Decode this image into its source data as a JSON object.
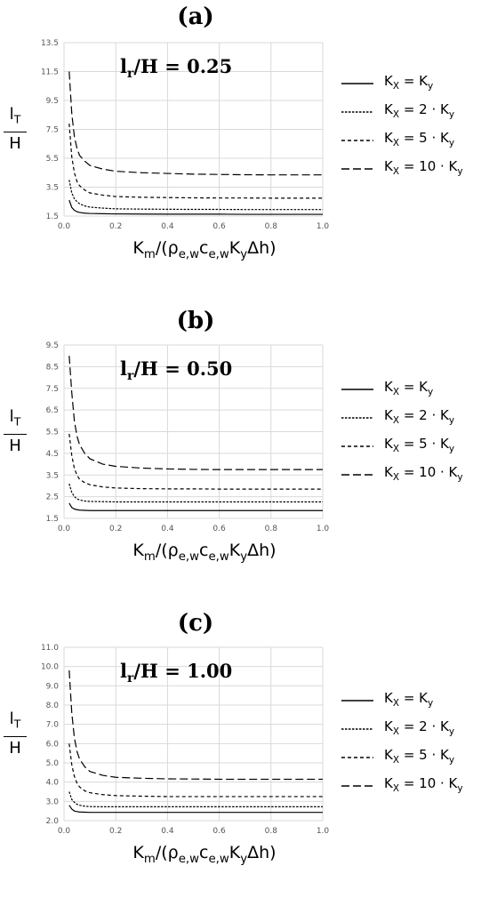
{
  "ylabel_num": "l",
  "ylabel_num_sub": "T",
  "ylabel_den": "H",
  "xlabel_main": "K",
  "xlabel_sub_m": "m",
  "xlabel_rest1": "/(ρ",
  "xlabel_sub_ew1": "e,w",
  "xlabel_c": "c",
  "xlabel_sub_ew2": "e,w",
  "xlabel_K": "K",
  "xlabel_sub_y": "y",
  "xlabel_tail": "Δh)",
  "legend": [
    {
      "label": "K",
      "sub": "X",
      "eq": " = K",
      "sub2": "y",
      "style": "solid"
    },
    {
      "label": "K",
      "sub": "X",
      "eq": " = 2 · K",
      "sub2": "y",
      "style": "dot"
    },
    {
      "label": "K",
      "sub": "X",
      "eq": " = 5 · K",
      "sub2": "y",
      "style": "dash"
    },
    {
      "label": "K",
      "sub": "X",
      "eq": " = 10 · K",
      "sub2": "y",
      "style": "longdash"
    }
  ],
  "colors": {
    "lines": "#000000",
    "grid": "#d9d9d9"
  },
  "chart_data": [
    {
      "type": "line",
      "panel_label": "(a)",
      "ratio_main": "l",
      "ratio_sub": "r",
      "ratio_rest": "/H = 0.25",
      "xlim": [
        0,
        1.0
      ],
      "ylim": [
        1.5,
        13.5
      ],
      "xticks": [
        "0.0",
        "0.2",
        "0.4",
        "0.6",
        "0.8",
        "1.0"
      ],
      "yticks": [
        "1.5",
        "3.5",
        "5.5",
        "7.5",
        "9.5",
        "11.5",
        "13.5"
      ],
      "grid": true,
      "legend_position": "right",
      "x": [
        0.02,
        0.03,
        0.04,
        0.05,
        0.06,
        0.08,
        0.1,
        0.15,
        0.2,
        0.3,
        0.4,
        0.5,
        0.6,
        0.7,
        0.8,
        0.9,
        1.0
      ],
      "series": [
        {
          "values": [
            2.6,
            2.1,
            1.9,
            1.8,
            1.75,
            1.7,
            1.68,
            1.66,
            1.65,
            1.64,
            1.63,
            1.63,
            1.63,
            1.62,
            1.62,
            1.62,
            1.62
          ]
        },
        {
          "values": [
            4.0,
            3.1,
            2.7,
            2.5,
            2.35,
            2.2,
            2.12,
            2.05,
            2.0,
            1.98,
            1.97,
            1.96,
            1.96,
            1.95,
            1.95,
            1.95,
            1.95
          ]
        },
        {
          "values": [
            7.9,
            5.6,
            4.5,
            3.9,
            3.6,
            3.3,
            3.1,
            2.95,
            2.85,
            2.8,
            2.78,
            2.76,
            2.75,
            2.75,
            2.74,
            2.74,
            2.74
          ]
        },
        {
          "values": [
            11.5,
            8.6,
            7.0,
            6.2,
            5.7,
            5.3,
            5.0,
            4.75,
            4.6,
            4.5,
            4.45,
            4.4,
            4.38,
            4.36,
            4.35,
            4.35,
            4.35
          ]
        }
      ]
    },
    {
      "type": "line",
      "panel_label": "(b)",
      "ratio_main": "l",
      "ratio_sub": "r",
      "ratio_rest": "/H = 0.50",
      "xlim": [
        0,
        1.0
      ],
      "ylim": [
        1.5,
        9.5
      ],
      "xticks": [
        "0.0",
        "0.2",
        "0.4",
        "0.6",
        "0.8",
        "1.0"
      ],
      "yticks": [
        "1.5",
        "2.5",
        "3.5",
        "4.5",
        "5.5",
        "6.5",
        "7.5",
        "8.5",
        "9.5"
      ],
      "grid": true,
      "legend_position": "right",
      "x": [
        0.02,
        0.03,
        0.04,
        0.05,
        0.06,
        0.08,
        0.1,
        0.15,
        0.2,
        0.3,
        0.4,
        0.5,
        0.6,
        0.7,
        0.8,
        0.9,
        1.0
      ],
      "series": [
        {
          "values": [
            2.2,
            2.0,
            1.93,
            1.9,
            1.88,
            1.87,
            1.86,
            1.86,
            1.86,
            1.86,
            1.86,
            1.86,
            1.86,
            1.86,
            1.86,
            1.86,
            1.86
          ]
        },
        {
          "values": [
            3.1,
            2.7,
            2.5,
            2.4,
            2.35,
            2.3,
            2.28,
            2.27,
            2.26,
            2.26,
            2.26,
            2.26,
            2.26,
            2.26,
            2.26,
            2.26,
            2.26
          ]
        },
        {
          "values": [
            5.4,
            4.4,
            3.8,
            3.5,
            3.3,
            3.15,
            3.05,
            2.95,
            2.9,
            2.87,
            2.86,
            2.86,
            2.85,
            2.85,
            2.85,
            2.85,
            2.85
          ]
        },
        {
          "values": [
            9.0,
            7.3,
            6.0,
            5.3,
            4.9,
            4.5,
            4.25,
            4.0,
            3.9,
            3.82,
            3.78,
            3.76,
            3.75,
            3.75,
            3.75,
            3.75,
            3.75
          ]
        }
      ]
    },
    {
      "type": "line",
      "panel_label": "(c)",
      "ratio_main": "l",
      "ratio_sub": "r",
      "ratio_rest": "/H = 1.00",
      "xlim": [
        0,
        1.0
      ],
      "ylim": [
        2.0,
        11.0
      ],
      "xticks": [
        "0.0",
        "0.2",
        "0.4",
        "0.6",
        "0.8",
        "1.0"
      ],
      "yticks": [
        "2.0",
        "3.0",
        "4.0",
        "5.0",
        "6.0",
        "7.0",
        "8.0",
        "9.0",
        "10.0",
        "11.0"
      ],
      "grid": true,
      "legend_position": "right",
      "x": [
        0.02,
        0.03,
        0.04,
        0.05,
        0.06,
        0.08,
        0.1,
        0.15,
        0.2,
        0.3,
        0.4,
        0.5,
        0.6,
        0.7,
        0.8,
        0.9,
        1.0
      ],
      "series": [
        {
          "values": [
            2.8,
            2.6,
            2.5,
            2.47,
            2.45,
            2.44,
            2.43,
            2.43,
            2.43,
            2.43,
            2.43,
            2.43,
            2.43,
            2.43,
            2.43,
            2.43,
            2.43
          ]
        },
        {
          "values": [
            3.5,
            3.1,
            2.95,
            2.85,
            2.8,
            2.75,
            2.73,
            2.72,
            2.72,
            2.72,
            2.72,
            2.72,
            2.72,
            2.72,
            2.72,
            2.72,
            2.72
          ]
        },
        {
          "values": [
            6.0,
            4.9,
            4.3,
            3.95,
            3.75,
            3.55,
            3.45,
            3.35,
            3.3,
            3.27,
            3.25,
            3.25,
            3.25,
            3.25,
            3.25,
            3.25,
            3.25
          ]
        },
        {
          "values": [
            9.8,
            7.6,
            6.3,
            5.6,
            5.2,
            4.8,
            4.55,
            4.35,
            4.25,
            4.2,
            4.17,
            4.16,
            4.15,
            4.15,
            4.15,
            4.15,
            4.15
          ]
        }
      ]
    }
  ]
}
